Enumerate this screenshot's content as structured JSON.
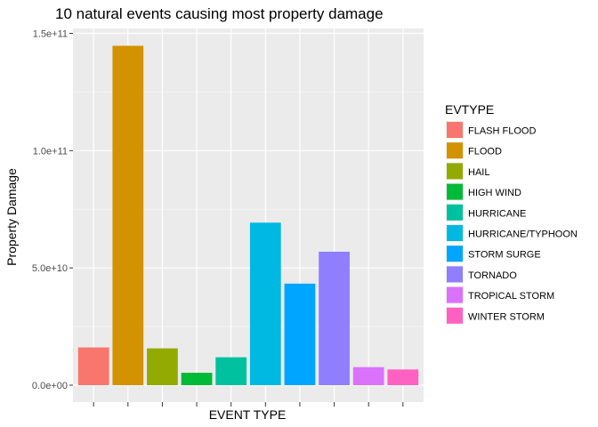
{
  "chart_data": {
    "type": "bar",
    "title": "10 natural events causing most property damage",
    "xlabel": "EVENT TYPE",
    "ylabel": "Property Damage",
    "categories": [
      "FLASH FLOOD",
      "FLOOD",
      "HAIL",
      "HIGH WIND",
      "HURRICANE",
      "HURRICANE/TYPHOON",
      "STORM SURGE",
      "TORNADO",
      "TROPICAL STORM",
      "WINTER STORM"
    ],
    "values": [
      16100000000,
      144700000000,
      15700000000,
      5300000000,
      11900000000,
      69300000000,
      43300000000,
      56900000000,
      7700000000,
      6700000000
    ],
    "colors": [
      "#F8766D",
      "#D39200",
      "#93AA00",
      "#00BA38",
      "#00C19F",
      "#00B9E3",
      "#00A5FF",
      "#8F7FFF",
      "#DB72FB",
      "#FF61C3"
    ],
    "ylim": [
      0,
      150000000000
    ],
    "y_ticks": [
      0,
      50000000000,
      100000000000,
      150000000000
    ],
    "y_tick_labels": [
      "0.0e+00",
      "5.0e+10",
      "1.0e+11",
      "1.5e+11"
    ],
    "x_tick_labels_visible": false,
    "grid": true,
    "legend": {
      "title": "EVTYPE",
      "position": "right"
    }
  }
}
